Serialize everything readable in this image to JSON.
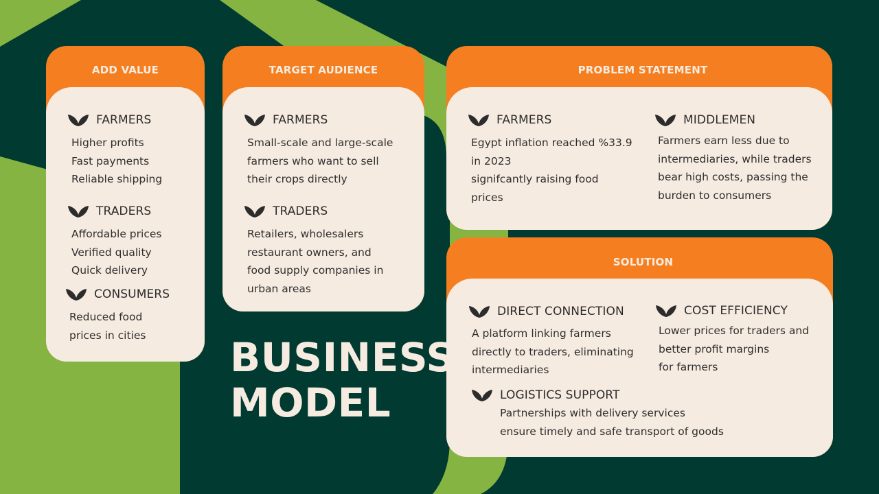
{
  "colors": {
    "dark_green": "#003a30",
    "light_green": "#86b442",
    "orange": "#f57f20",
    "cream": "#f6ebe1",
    "leaf_icon": "#2c2c2c"
  },
  "add_value": {
    "title": "ADD VALUE",
    "farmers": {
      "icon": "leaf-icon",
      "title": "FARMERS",
      "lines": [
        "Higher profits",
        "Fast payments",
        "Reliable shipping"
      ]
    },
    "traders": {
      "icon": "leaf-icon",
      "title": "TRADERS",
      "lines": [
        "Affordable prices",
        "Verified quality",
        "Quick delivery"
      ]
    },
    "consumers": {
      "icon": "leaf-icon",
      "title": "CONSUMERS",
      "lines": [
        "Reduced food",
        "prices in cities"
      ]
    }
  },
  "target_audience": {
    "title": "TARGET AUDIENCE",
    "farmers": {
      "icon": "leaf-icon",
      "title": "FARMERS",
      "lines": [
        "Small-scale and large-scale",
        "farmers who want to sell",
        "their crops directly"
      ]
    },
    "traders": {
      "icon": "leaf-icon",
      "title": "TRADERS",
      "lines": [
        "Retailers, wholesalers",
        "restaurant owners, and",
        "food supply companies in",
        "urban areas"
      ]
    }
  },
  "problem_statement": {
    "title": "PROBLEM STATEMENT",
    "farmers": {
      "icon": "leaf-icon",
      "title": "FARMERS",
      "lines": [
        "Egypt inflation reached %33.9",
        "in  2023",
        "signifcantly raising food",
        "prices"
      ]
    },
    "middlemen": {
      "icon": "leaf-icon",
      "title": "MIDDLEMEN",
      "lines": [
        "Farmers earn less due to",
        "intermediaries, while traders",
        "bear high costs, passing the",
        "burden to consumers"
      ]
    }
  },
  "solution": {
    "title": "SOLUTION",
    "direct_connection": {
      "icon": "leaf-icon",
      "title": "DIRECT CONNECTION",
      "lines": [
        "A platform linking farmers",
        "directly to traders, eliminating",
        "intermediaries"
      ]
    },
    "cost_efficiency": {
      "icon": "leaf-icon",
      "title": "COST EFFICIENCY",
      "lines": [
        "Lower prices for traders and",
        "better profit margins",
        "for farmers"
      ]
    },
    "logistics_support": {
      "icon": "leaf-icon",
      "title": "LOGISTICS SUPPORT",
      "lines": [
        "Partnerships with delivery services",
        "ensure timely and safe transport of goods"
      ]
    }
  },
  "headline": {
    "line1": "BUSINESS",
    "line2": "MODEL"
  }
}
